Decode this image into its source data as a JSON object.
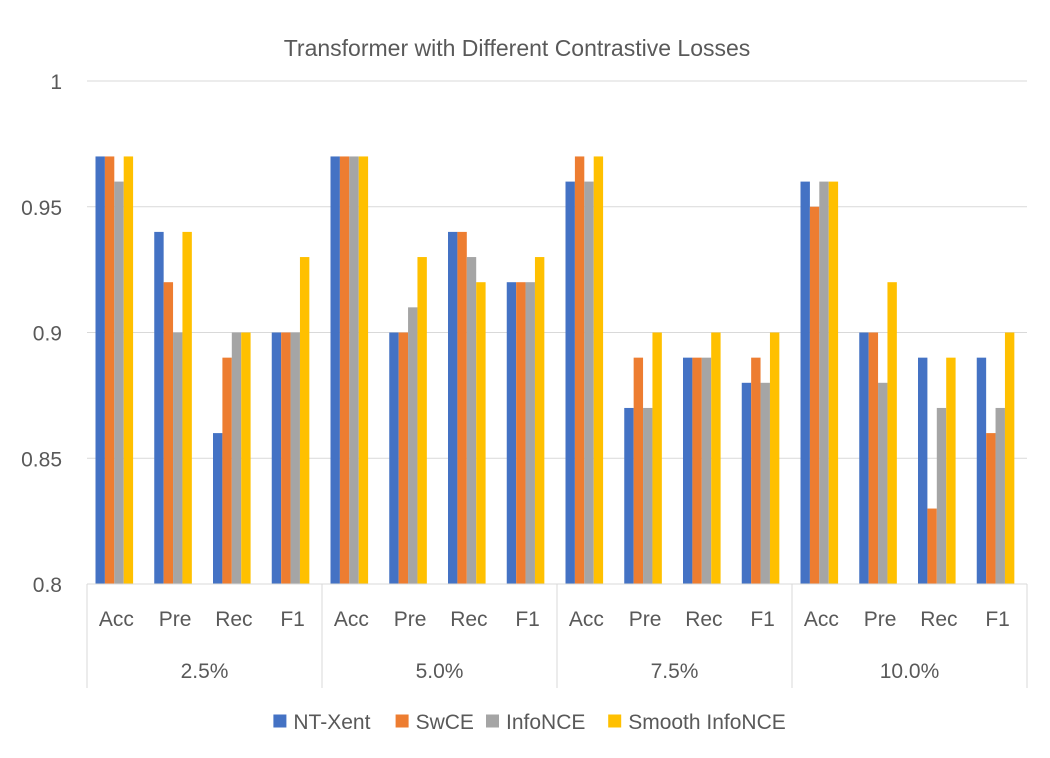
{
  "chart_data": {
    "type": "bar",
    "title": "Transformer  with Different Contrastive Losses",
    "xlabel": "",
    "ylabel": "",
    "ylim": [
      0.8,
      1
    ],
    "yticks": [
      "0.8",
      "0.85",
      "0.9",
      "0.95",
      "1"
    ],
    "yticks_values": [
      0.8,
      0.85,
      0.9,
      0.95,
      1.0
    ],
    "groups": [
      "2.5%",
      "5.0%",
      "7.5%",
      "10.0%"
    ],
    "metrics": [
      "Acc",
      "Pre",
      "Rec",
      "F1"
    ],
    "categories": [
      "2.5% Acc",
      "2.5% Pre",
      "2.5% Rec",
      "2.5% F1",
      "5.0% Acc",
      "5.0% Pre",
      "5.0% Rec",
      "5.0% F1",
      "7.5% Acc",
      "7.5% Pre",
      "7.5% Rec",
      "7.5% F1",
      "10.0% Acc",
      "10.0% Pre",
      "10.0% Rec",
      "10.0% F1"
    ],
    "legend_position": "bottom",
    "gridlines": true,
    "series": [
      {
        "name": "NT-Xent",
        "color": "#4472C4",
        "values": [
          0.97,
          0.94,
          0.86,
          0.9,
          0.97,
          0.9,
          0.94,
          0.92,
          0.96,
          0.87,
          0.89,
          0.88,
          0.96,
          0.9,
          0.89,
          0.89
        ]
      },
      {
        "name": "SwCE",
        "color": "#ED7D31",
        "values": [
          0.97,
          0.92,
          0.89,
          0.9,
          0.97,
          0.9,
          0.94,
          0.92,
          0.97,
          0.89,
          0.89,
          0.89,
          0.95,
          0.9,
          0.83,
          0.86
        ]
      },
      {
        "name": "InfoNCE",
        "color": "#A5A5A5",
        "values": [
          0.96,
          0.9,
          0.9,
          0.9,
          0.97,
          0.91,
          0.93,
          0.92,
          0.96,
          0.87,
          0.89,
          0.88,
          0.96,
          0.88,
          0.87,
          0.87
        ]
      },
      {
        "name": "Smooth InfoNCE",
        "color": "#FFC000",
        "values": [
          0.97,
          0.94,
          0.9,
          0.93,
          0.97,
          0.93,
          0.92,
          0.93,
          0.97,
          0.9,
          0.9,
          0.9,
          0.96,
          0.92,
          0.89,
          0.9
        ]
      }
    ]
  }
}
